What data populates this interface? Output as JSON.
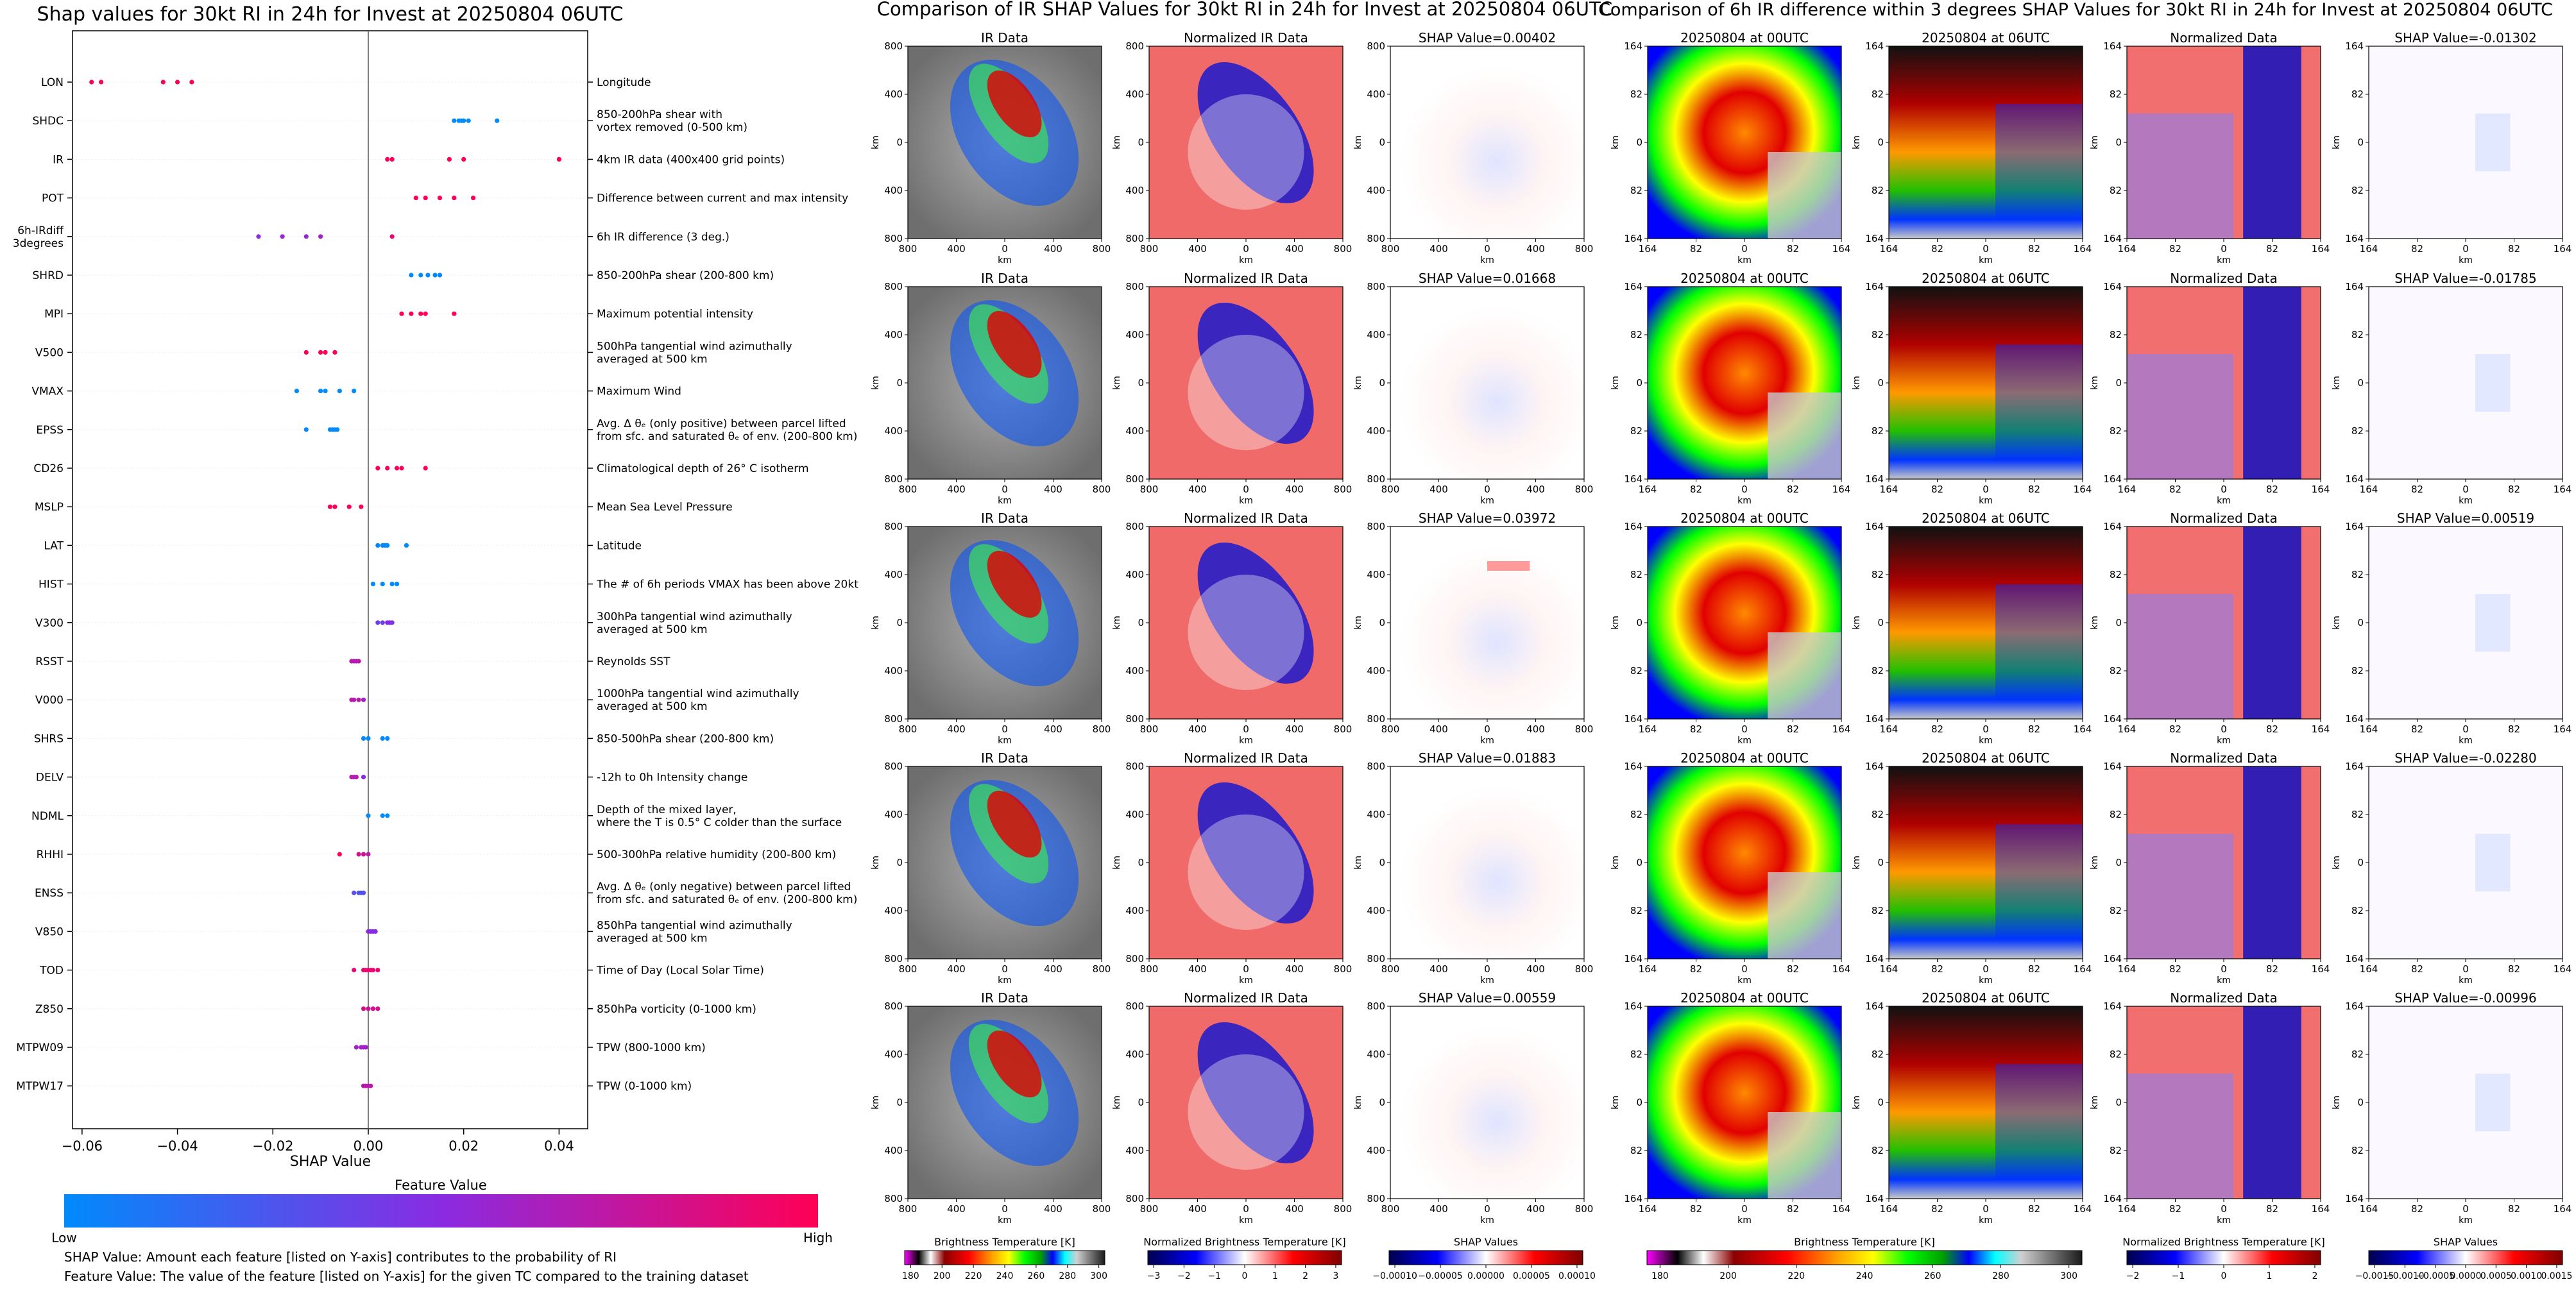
{
  "chart_data": [
    {
      "type": "scatter",
      "title": "Shap values for 30kt RI in 24h for Invest at 20250804 06UTC",
      "xlabel": "SHAP Value",
      "xlim": [
        -0.062,
        0.046
      ],
      "xticks": [
        -0.06,
        -0.04,
        -0.02,
        0.0,
        0.02,
        0.04
      ],
      "xtick_labels": [
        "−0.06",
        "−0.04",
        "−0.02",
        "0.00",
        "0.02",
        "0.04"
      ],
      "grid": false,
      "features": [
        {
          "name": "LON",
          "desc": "Longitude",
          "points": [
            [
              -0.058,
              1
            ],
            [
              -0.056,
              1
            ],
            [
              -0.043,
              1
            ],
            [
              -0.04,
              1
            ],
            [
              -0.037,
              1
            ]
          ]
        },
        {
          "name": "SHDC",
          "desc": "850-200hPa shear with\nvortex removed (0-500 km)",
          "points": [
            [
              0.018,
              0
            ],
            [
              0.019,
              0
            ],
            [
              0.0195,
              0
            ],
            [
              0.02,
              0
            ],
            [
              0.021,
              0
            ],
            [
              0.027,
              0
            ]
          ]
        },
        {
          "name": "IR",
          "desc": "4km IR data (400x400 grid points)",
          "points": [
            [
              0.004,
              1
            ],
            [
              0.005,
              1
            ],
            [
              0.017,
              1
            ],
            [
              0.02,
              1
            ],
            [
              0.04,
              1
            ]
          ]
        },
        {
          "name": "POT",
          "desc": "Difference between current and max intensity",
          "points": [
            [
              0.01,
              1
            ],
            [
              0.012,
              1
            ],
            [
              0.015,
              1
            ],
            [
              0.018,
              1
            ],
            [
              0.022,
              1
            ]
          ]
        },
        {
          "name": "6h-IRdiff\n3degrees",
          "desc": "6h IR difference (3 deg.)",
          "points": [
            [
              -0.023,
              0.5
            ],
            [
              -0.018,
              0.55
            ],
            [
              -0.013,
              0.55
            ],
            [
              -0.01,
              0.6
            ],
            [
              0.005,
              0.9
            ]
          ]
        },
        {
          "name": "SHRD",
          "desc": "850-200hPa shear (200-800 km)",
          "points": [
            [
              0.009,
              0
            ],
            [
              0.011,
              0
            ],
            [
              0.0125,
              0
            ],
            [
              0.014,
              0
            ],
            [
              0.015,
              0
            ]
          ]
        },
        {
          "name": "MPI",
          "desc": "Maximum potential intensity",
          "points": [
            [
              0.007,
              1
            ],
            [
              0.009,
              1
            ],
            [
              0.011,
              1
            ],
            [
              0.012,
              1
            ],
            [
              0.018,
              1
            ]
          ]
        },
        {
          "name": "V500",
          "desc": "500hPa tangential wind azimuthally\naveraged at 500 km",
          "points": [
            [
              -0.013,
              1
            ],
            [
              -0.01,
              1
            ],
            [
              -0.009,
              1
            ],
            [
              -0.007,
              1
            ]
          ]
        },
        {
          "name": "VMAX",
          "desc": "Maximum Wind",
          "points": [
            [
              -0.015,
              0
            ],
            [
              -0.01,
              0
            ],
            [
              -0.009,
              0
            ],
            [
              -0.006,
              0
            ],
            [
              -0.003,
              0
            ]
          ]
        },
        {
          "name": "EPSS",
          "desc": "Avg. Δ θₑ (only positive) between parcel lifted\nfrom sfc. and saturated θₑ of env. (200-800 km)",
          "points": [
            [
              -0.013,
              0
            ],
            [
              -0.008,
              0
            ],
            [
              -0.0075,
              0
            ],
            [
              -0.007,
              0
            ],
            [
              -0.0065,
              0
            ]
          ]
        },
        {
          "name": "CD26",
          "desc": "Climatological depth of 26° C isotherm",
          "points": [
            [
              0.002,
              1
            ],
            [
              0.004,
              1
            ],
            [
              0.006,
              1
            ],
            [
              0.007,
              1
            ],
            [
              0.012,
              1
            ]
          ]
        },
        {
          "name": "MSLP",
          "desc": "Mean Sea Level Pressure",
          "points": [
            [
              -0.008,
              1
            ],
            [
              -0.007,
              1
            ],
            [
              -0.004,
              1
            ],
            [
              -0.0015,
              1
            ]
          ]
        },
        {
          "name": "LAT",
          "desc": "Latitude",
          "points": [
            [
              0.002,
              0
            ],
            [
              0.003,
              0
            ],
            [
              0.0035,
              0
            ],
            [
              0.004,
              0
            ],
            [
              0.008,
              0
            ]
          ]
        },
        {
          "name": "HIST",
          "desc": "The # of 6h periods VMAX has been above 20kt",
          "points": [
            [
              0.001,
              0
            ],
            [
              0.003,
              0
            ],
            [
              0.005,
              0
            ],
            [
              0.006,
              0
            ]
          ]
        },
        {
          "name": "V300",
          "desc": "300hPa tangential wind azimuthally\naveraged at 500 km",
          "points": [
            [
              0.002,
              0.4
            ],
            [
              0.003,
              0.4
            ],
            [
              0.004,
              0.5
            ],
            [
              0.0045,
              0.5
            ],
            [
              0.005,
              0.45
            ]
          ]
        },
        {
          "name": "RSST",
          "desc": "Reynolds SST",
          "points": [
            [
              -0.0035,
              0.7
            ],
            [
              -0.003,
              0.7
            ],
            [
              -0.0025,
              0.65
            ],
            [
              -0.002,
              0.7
            ]
          ]
        },
        {
          "name": "V000",
          "desc": "1000hPa tangential wind azimuthally\naveraged at 500 km",
          "points": [
            [
              -0.0035,
              0.7
            ],
            [
              -0.003,
              0.7
            ],
            [
              -0.002,
              0.7
            ],
            [
              -0.001,
              0.6
            ]
          ]
        },
        {
          "name": "SHRS",
          "desc": "850-500hPa shear (200-800 km)",
          "points": [
            [
              -0.001,
              0
            ],
            [
              0.0,
              0
            ],
            [
              0.003,
              0
            ],
            [
              0.004,
              0
            ]
          ]
        },
        {
          "name": "DELV",
          "desc": "-12h to 0h Intensity change",
          "points": [
            [
              -0.0035,
              0.7
            ],
            [
              -0.003,
              0.65
            ],
            [
              -0.0025,
              0.7
            ],
            [
              -0.001,
              0.5
            ]
          ]
        },
        {
          "name": "NDML",
          "desc": "Depth of the mixed layer,\nwhere the T is 0.5° C colder than the surface",
          "points": [
            [
              0.0,
              0
            ],
            [
              0.003,
              0
            ],
            [
              0.004,
              0
            ]
          ]
        },
        {
          "name": "RHHI",
          "desc": "500-300hPa relative humidity (200-800 km)",
          "points": [
            [
              -0.006,
              1
            ],
            [
              -0.002,
              0.8
            ],
            [
              -0.001,
              0.8
            ],
            [
              0.0,
              0.7
            ]
          ]
        },
        {
          "name": "ENSS",
          "desc": "Avg. Δ θₑ (only negative) between parcel lifted\nfrom sfc. and saturated θₑ of env. (200-800 km)",
          "points": [
            [
              -0.003,
              0.3
            ],
            [
              -0.002,
              0.3
            ],
            [
              -0.0015,
              0.3
            ],
            [
              -0.001,
              0.3
            ]
          ]
        },
        {
          "name": "V850",
          "desc": "850hPa tangential wind azimuthally\naveraged at 500 km",
          "points": [
            [
              0.0,
              0.5
            ],
            [
              0.0005,
              0.5
            ],
            [
              0.001,
              0.5
            ],
            [
              0.0015,
              0.5
            ]
          ]
        },
        {
          "name": "TOD",
          "desc": "Time of Day (Local Solar Time)",
          "points": [
            [
              -0.003,
              0.9
            ],
            [
              -0.001,
              0.9
            ],
            [
              -0.0005,
              0.9
            ],
            [
              0.0,
              0.9
            ],
            [
              0.0005,
              0.9
            ],
            [
              0.001,
              0.9
            ],
            [
              0.002,
              0.9
            ]
          ]
        },
        {
          "name": "Z850",
          "desc": "850hPa vorticity (0-1000 km)",
          "points": [
            [
              -0.001,
              0.8
            ],
            [
              0.0,
              0.8
            ],
            [
              0.001,
              0.8
            ],
            [
              0.002,
              0.8
            ]
          ]
        },
        {
          "name": "MTPW09",
          "desc": "TPW (800-1000 km)",
          "points": [
            [
              -0.0025,
              0.6
            ],
            [
              -0.0015,
              0.6
            ],
            [
              -0.001,
              0.6
            ],
            [
              -0.0005,
              0.6
            ]
          ]
        },
        {
          "name": "MTPW17",
          "desc": "TPW (0-1000 km)",
          "points": [
            [
              -0.001,
              0.7
            ],
            [
              -0.0005,
              0.7
            ],
            [
              0.0,
              0.7
            ],
            [
              0.0005,
              0.7
            ]
          ]
        }
      ],
      "colorbar": {
        "title": "Feature Value",
        "low": "Low",
        "high": "High",
        "colors": [
          "#008afb",
          "#8a2be2",
          "#ff0055"
        ]
      },
      "notes": [
        "SHAP Value: Amount each feature [listed on Y-axis] contributes to the probability of RI",
        "Feature Value: The value of the feature [listed on Y-axis] for the given TC compared to the training dataset"
      ]
    },
    {
      "type": "heatmap",
      "title": "Comparison of IR SHAP Values for 30kt RI in 24h for Invest at 20250804 06UTC",
      "columns": [
        "IR Data",
        "Normalized IR Data"
      ],
      "shap_titles": [
        "SHAP Value=0.00402",
        "SHAP Value=0.01668",
        "SHAP Value=0.03972",
        "SHAP Value=0.01883",
        "SHAP Value=0.00559"
      ],
      "xlabel": "km",
      "ylabel": "km",
      "ticks": [
        "800",
        "400",
        "0",
        "400",
        "800"
      ],
      "colorbars": [
        {
          "label": "Brightness Temperature [K]",
          "ticks": [
            "180",
            "200",
            "220",
            "240",
            "260",
            "280",
            "300"
          ]
        },
        {
          "label": "Normalized Brightness Temperature [K]",
          "ticks": [
            "−3",
            "−2",
            "−1",
            "0",
            "1",
            "2",
            "3"
          ]
        },
        {
          "label": "SHAP Values",
          "ticks": [
            "−0.00010",
            "−0.00005",
            "0.00000",
            "0.00005",
            "0.00010"
          ]
        }
      ]
    },
    {
      "type": "heatmap",
      "title": "Comparison of 6h IR difference within 3 degrees SHAP Values for 30kt RI in 24h for Invest at 20250804 06UTC",
      "columns": [
        "20250804 at 00UTC",
        "20250804 at 06UTC",
        "Normalized Data"
      ],
      "shap_titles": [
        "SHAP Value=-0.01302",
        "SHAP Value=-0.01785",
        "SHAP Value=0.00519",
        "SHAP Value=-0.02280",
        "SHAP Value=-0.00996"
      ],
      "xlabel": "km",
      "ylabel": "km",
      "ticks": [
        "164",
        "82",
        "0",
        "82",
        "164"
      ],
      "colorbars": [
        {
          "label": "Brightness Temperature [K]",
          "ticks": [
            "180",
            "200",
            "220",
            "240",
            "260",
            "280",
            "300"
          ]
        },
        {
          "label": "Normalized Brightness Temperature [K]",
          "ticks": [
            "−2",
            "−1",
            "0",
            "1",
            "2"
          ]
        },
        {
          "label": "SHAP Values",
          "ticks": [
            "−0.0015",
            "−0.0010",
            "−0.0005",
            "0.0000",
            "0.0005",
            "0.0010",
            "0.0015"
          ]
        }
      ]
    }
  ]
}
